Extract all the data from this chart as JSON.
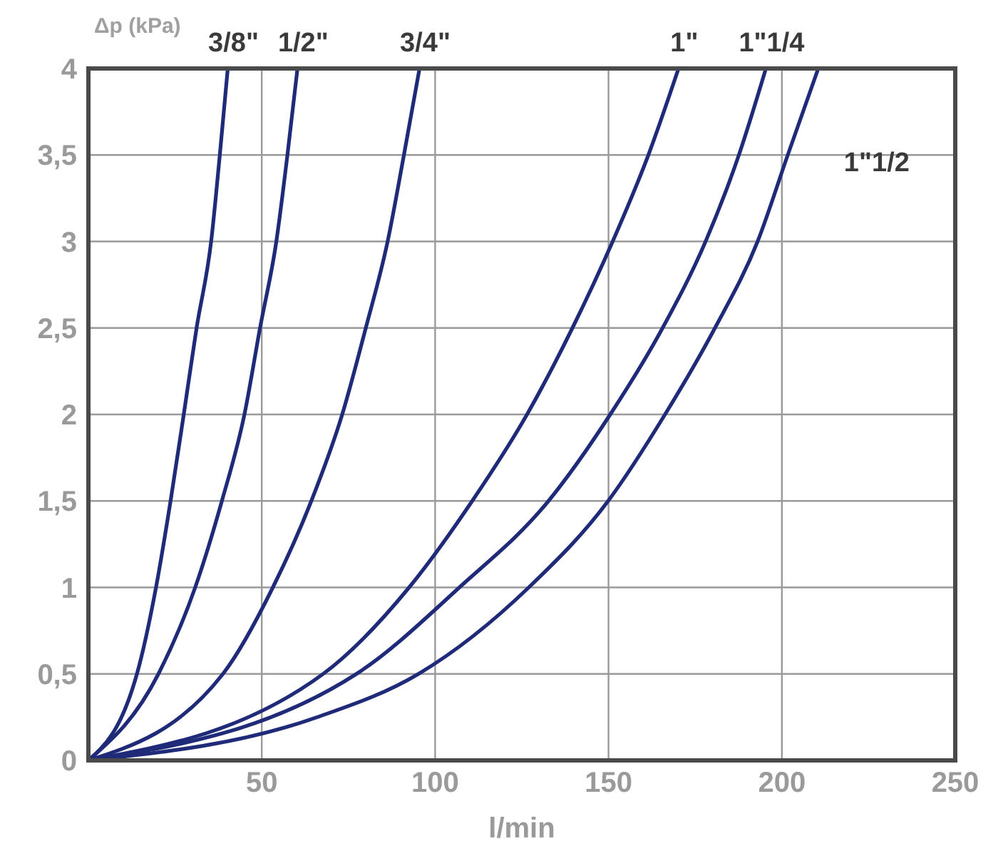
{
  "chart_data": {
    "type": "line",
    "xlabel": "l/min",
    "ylabel": "Δp (kPa)",
    "xlim": [
      0,
      250
    ],
    "ylim": [
      0,
      4
    ],
    "xticks": [
      {
        "value": 0,
        "label": null
      },
      50,
      100,
      150,
      200,
      250
    ],
    "yticks": [
      0,
      {
        "value": 0.5,
        "label": "0,5"
      },
      1,
      {
        "value": 1.5,
        "label": "1,5"
      },
      2,
      {
        "value": 2.5,
        "label": "2,5"
      },
      3,
      {
        "value": 3.5,
        "label": "3,5"
      },
      4
    ],
    "grid": true,
    "marker": "none",
    "line_style": "solid",
    "series": [
      {
        "name": "3/8\"",
        "color": "#1f2a78",
        "x": [
          0,
          14,
          19.5,
          23.7,
          27.5,
          31.2,
          35.4,
          37.9,
          40.2
        ],
        "values": [
          0,
          0.5,
          1,
          1.5,
          2,
          2.5,
          3,
          3.5,
          4
        ]
      },
      {
        "name": "1/2\"",
        "color": "#1f2a78",
        "x": [
          0,
          20.2,
          30.8,
          38.5,
          45,
          49.5,
          54.2,
          57.4,
          60.3
        ],
        "values": [
          0,
          0.5,
          1,
          1.5,
          2,
          2.5,
          3,
          3.5,
          4
        ]
      },
      {
        "name": "3/4\"",
        "color": "#1f2a78",
        "x": [
          0,
          38.8,
          53.2,
          64.3,
          73.2,
          80,
          86.3,
          91,
          95.5
        ],
        "values": [
          0,
          0.5,
          1,
          1.5,
          2,
          2.5,
          3,
          3.5,
          4
        ]
      },
      {
        "name": "1\"",
        "color": "#1f2a78",
        "x": [
          0,
          67.7,
          92.5,
          110.7,
          126.5,
          139.6,
          151.2,
          161.5,
          170.2
        ],
        "values": [
          0,
          0.5,
          1,
          1.5,
          2,
          2.5,
          3,
          3.5,
          4
        ]
      },
      {
        "name": "1\"1/4",
        "color": "#1f2a78",
        "x": [
          0,
          77.3,
          107,
          132.7,
          150.5,
          165.6,
          178,
          187.6,
          195.4
        ],
        "values": [
          0,
          0.5,
          1,
          1.5,
          2,
          2.5,
          3,
          3.5,
          4
        ]
      },
      {
        "name": "1\"1/2",
        "color": "#1f2a78",
        "x": [
          0,
          66,
          95.2,
          127,
          149.9,
          166.3,
          180.7,
          193,
          201.7,
          210.5
        ],
        "values": [
          0,
          0.25,
          0.5,
          1,
          1.5,
          2,
          2.5,
          3,
          3.5,
          4
        ]
      }
    ]
  }
}
